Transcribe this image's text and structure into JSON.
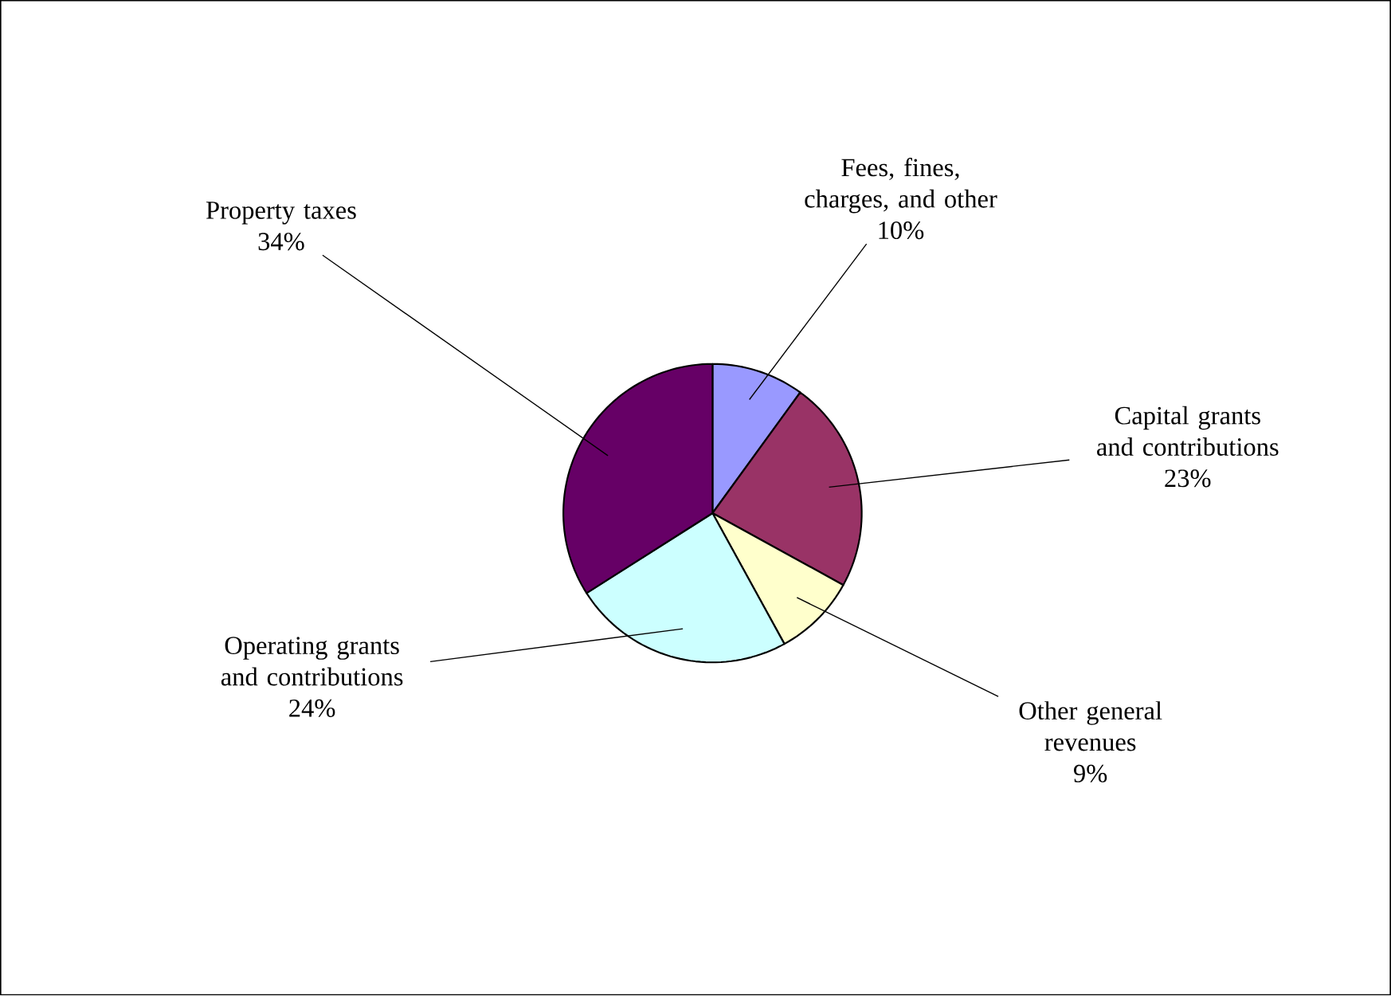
{
  "chart_data": {
    "type": "pie",
    "categories": [
      "Fees, fines, charges, and other",
      "Capital grants and contributions",
      "Other general revenues",
      "Operating grants and contributions",
      "Property taxes"
    ],
    "values": [
      10,
      23,
      9,
      24,
      34
    ],
    "colors": [
      "#9999ff",
      "#993366",
      "#ffffcc",
      "#ccffff",
      "#660066"
    ],
    "value_labels": [
      "10%",
      "23%",
      "9%",
      "24%",
      "34%"
    ]
  }
}
